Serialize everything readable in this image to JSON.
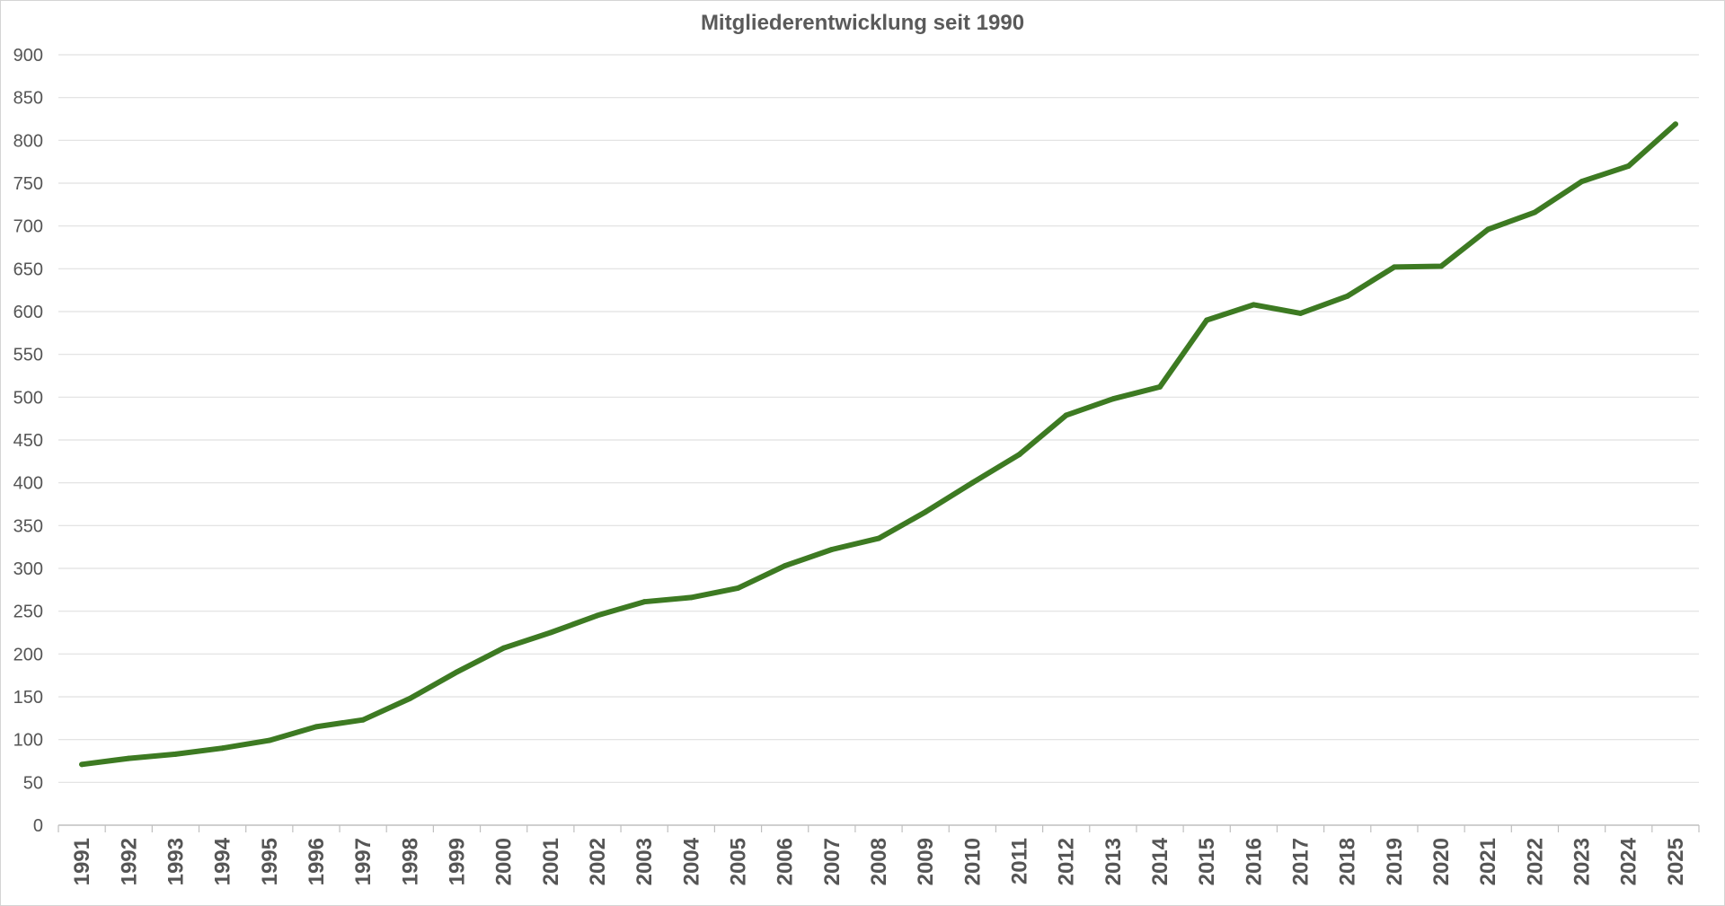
{
  "chart_data": {
    "type": "line",
    "title": "Mitgliederentwicklung seit 1990",
    "xlabel": "",
    "ylabel": "",
    "ylim": [
      0,
      900
    ],
    "ytick_step": 50,
    "grid": true,
    "legend": "none",
    "x": [
      "1991",
      "1992",
      "1993",
      "1994",
      "1995",
      "1996",
      "1997",
      "1998",
      "1999",
      "2000",
      "2001",
      "2002",
      "2003",
      "2004",
      "2005",
      "2006",
      "2007",
      "2008",
      "2009",
      "2010",
      "2011",
      "2012",
      "2013",
      "2014",
      "2015",
      "2016",
      "2017",
      "2018",
      "2019",
      "2020",
      "2021",
      "2022",
      "2023",
      "2024",
      "2025"
    ],
    "series": [
      {
        "color": "#3d7a22",
        "values": [
          71,
          78,
          83,
          90,
          99,
          115,
          123,
          148,
          179,
          207,
          225,
          245,
          261,
          266,
          277,
          303,
          322,
          335,
          366,
          400,
          433,
          479,
          498,
          512,
          590,
          608,
          598,
          618,
          652,
          653,
          696,
          716,
          752,
          770,
          819
        ]
      }
    ]
  }
}
